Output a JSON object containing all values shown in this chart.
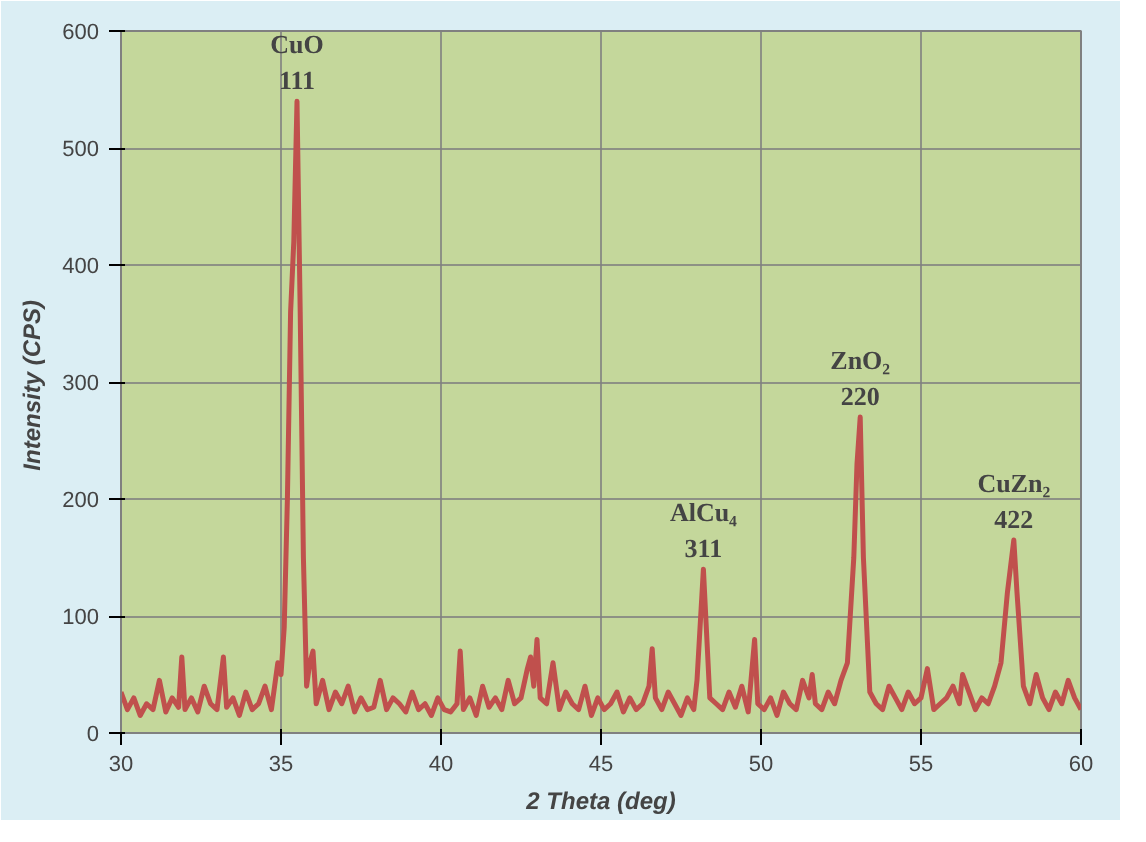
{
  "chart_data": {
    "type": "line",
    "xlabel": "2 Theta (deg)",
    "ylabel": "Intensity  (CPS)",
    "xlim": [
      30,
      60
    ],
    "ylim": [
      0,
      600
    ],
    "xticks": [
      30,
      35,
      40,
      45,
      50,
      55,
      60
    ],
    "yticks": [
      0,
      100,
      200,
      300,
      400,
      500,
      600
    ],
    "grid": true,
    "marker": "none",
    "line_style": "solid",
    "series": [
      {
        "color": "#c0504d",
        "x": [
          30.0,
          30.2,
          30.4,
          30.6,
          30.8,
          31.0,
          31.2,
          31.4,
          31.6,
          31.8,
          31.9,
          32.0,
          32.2,
          32.4,
          32.6,
          32.8,
          33.0,
          33.2,
          33.3,
          33.5,
          33.7,
          33.9,
          34.1,
          34.3,
          34.5,
          34.7,
          34.9,
          35.0,
          35.1,
          35.2,
          35.3,
          35.4,
          35.5,
          35.6,
          35.7,
          35.8,
          35.9,
          36.0,
          36.1,
          36.3,
          36.5,
          36.7,
          36.9,
          37.1,
          37.3,
          37.5,
          37.7,
          37.9,
          38.1,
          38.3,
          38.5,
          38.7,
          38.9,
          39.1,
          39.3,
          39.5,
          39.7,
          39.9,
          40.1,
          40.3,
          40.5,
          40.6,
          40.7,
          40.9,
          41.1,
          41.3,
          41.5,
          41.7,
          41.9,
          42.1,
          42.3,
          42.5,
          42.7,
          42.8,
          42.9,
          43.0,
          43.1,
          43.3,
          43.5,
          43.7,
          43.9,
          44.1,
          44.3,
          44.5,
          44.7,
          44.9,
          45.1,
          45.3,
          45.5,
          45.7,
          45.9,
          46.1,
          46.3,
          46.5,
          46.6,
          46.7,
          46.9,
          47.1,
          47.3,
          47.5,
          47.7,
          47.9,
          48.0,
          48.2,
          48.4,
          48.6,
          48.8,
          49.0,
          49.2,
          49.4,
          49.6,
          49.8,
          49.9,
          50.1,
          50.3,
          50.5,
          50.7,
          50.9,
          51.1,
          51.3,
          51.5,
          51.6,
          51.7,
          51.9,
          52.1,
          52.3,
          52.5,
          52.7,
          52.9,
          53.0,
          53.1,
          53.2,
          53.4,
          53.6,
          53.8,
          54.0,
          54.2,
          54.4,
          54.6,
          54.8,
          55.0,
          55.2,
          55.4,
          55.6,
          55.8,
          56.0,
          56.2,
          56.3,
          56.5,
          56.7,
          56.9,
          57.1,
          57.3,
          57.5,
          57.7,
          57.9,
          58.0,
          58.2,
          58.4,
          58.6,
          58.8,
          59.0,
          59.2,
          59.4,
          59.6,
          59.8,
          60.0
        ],
        "values": [
          35,
          20,
          30,
          15,
          25,
          20,
          45,
          18,
          30,
          22,
          65,
          20,
          30,
          18,
          40,
          25,
          20,
          65,
          22,
          30,
          15,
          35,
          20,
          25,
          40,
          20,
          60,
          50,
          90,
          200,
          360,
          420,
          540,
          360,
          150,
          40,
          60,
          70,
          25,
          45,
          20,
          35,
          25,
          40,
          18,
          30,
          20,
          22,
          45,
          20,
          30,
          25,
          18,
          35,
          20,
          25,
          15,
          30,
          20,
          18,
          25,
          70,
          20,
          30,
          15,
          40,
          22,
          30,
          20,
          45,
          25,
          30,
          55,
          65,
          40,
          80,
          30,
          25,
          60,
          20,
          35,
          25,
          20,
          40,
          15,
          30,
          20,
          25,
          35,
          18,
          30,
          20,
          25,
          40,
          72,
          30,
          20,
          35,
          25,
          15,
          30,
          20,
          45,
          140,
          30,
          25,
          20,
          35,
          22,
          40,
          18,
          80,
          25,
          20,
          30,
          15,
          35,
          25,
          20,
          45,
          30,
          50,
          25,
          20,
          35,
          25,
          45,
          60,
          150,
          230,
          270,
          150,
          35,
          25,
          20,
          40,
          30,
          20,
          35,
          25,
          30,
          55,
          20,
          25,
          30,
          40,
          25,
          50,
          35,
          20,
          30,
          25,
          40,
          60,
          120,
          165,
          120,
          40,
          25,
          50,
          30,
          20,
          35,
          25,
          45,
          30,
          20
        ]
      }
    ],
    "annotations": [
      {
        "text": "CuO\n111",
        "x": 35.5,
        "y": 540
      },
      {
        "text": "AlCu₄\n311",
        "x": 48.2,
        "y": 140
      },
      {
        "text": "ZnO₂\n220",
        "x": 53.1,
        "y": 270
      },
      {
        "text": "CuZn₂\n422",
        "x": 57.9,
        "y": 165
      }
    ]
  }
}
